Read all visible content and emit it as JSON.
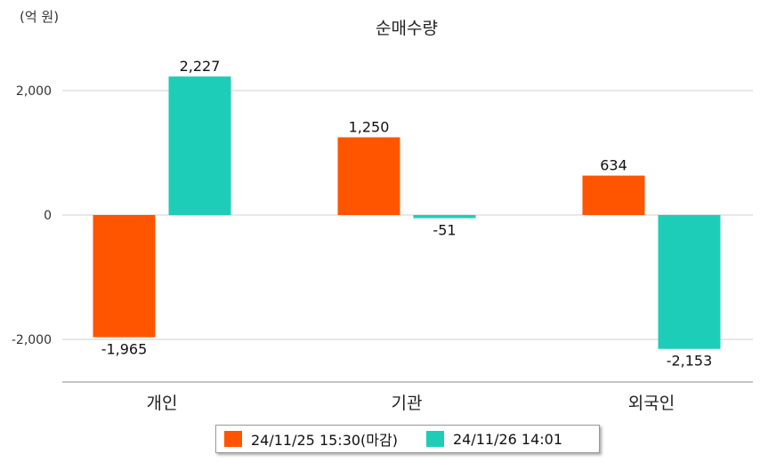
{
  "chart_data": {
    "type": "bar",
    "title": "순매수량",
    "unit_label": "(억 원)",
    "categories": [
      "개인",
      "기관",
      "외국인"
    ],
    "series": [
      {
        "name": "24/11/25 15:30(마감)",
        "values": [
          -1965,
          1250,
          634
        ],
        "color": "#ff5500"
      },
      {
        "name": "24/11/26 14:01",
        "values": [
          2227,
          -51,
          -2153
        ],
        "color": "#1ecdb8"
      }
    ],
    "data_labels": [
      [
        "-1,965",
        "1,250",
        "634"
      ],
      [
        "2,227",
        "-51",
        "-2,153"
      ]
    ],
    "yticks": [
      2000,
      0,
      -2000
    ],
    "ytick_labels": [
      "2,000",
      "0",
      "-2,000"
    ],
    "ylim": [
      -2700,
      2700
    ],
    "grid": true,
    "legend_position": "bottom"
  }
}
